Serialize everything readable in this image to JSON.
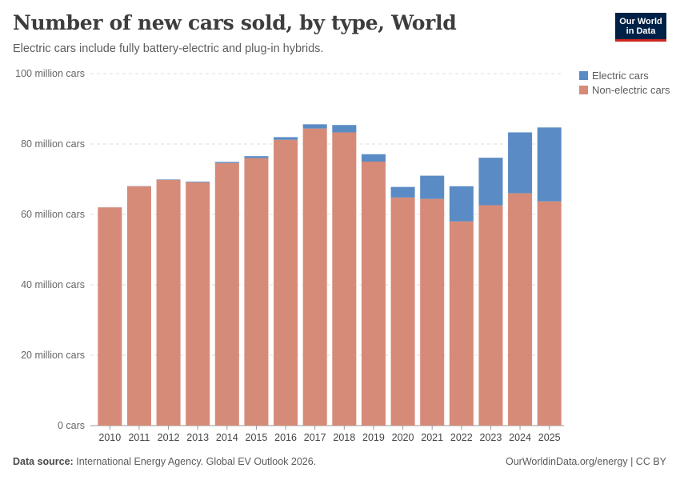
{
  "header": {
    "title": "Number of new cars sold, by type, World",
    "subtitle": "Electric cars include fully battery-electric and plug-in hybrids.",
    "logo_line1": "Our World",
    "logo_line2": "in Data"
  },
  "footer": {
    "source_label": "Data source:",
    "source_text": "International Energy Agency. Global EV Outlook 2026.",
    "right_text": "OurWorldinData.org/energy | CC BY"
  },
  "colors": {
    "electric": "#5b8bc4",
    "non_electric": "#d68b78",
    "grid": "#dddddd"
  },
  "chart_data": {
    "type": "bar",
    "stacked": true,
    "title": "Number of new cars sold, by type, World",
    "subtitle": "Electric cars include fully battery-electric and plug-in hybrids.",
    "categories": [
      "2010",
      "2011",
      "2012",
      "2013",
      "2014",
      "2015",
      "2016",
      "2017",
      "2018",
      "2019",
      "2020",
      "2021",
      "2022",
      "2023",
      "2024",
      "2025"
    ],
    "series": [
      {
        "name": "Non-electric cars",
        "values": [
          62.0,
          68.0,
          69.8,
          69.1,
          74.6,
          76.0,
          81.2,
          84.4,
          83.3,
          75.0,
          64.8,
          64.4,
          58.0,
          62.6,
          66.0,
          63.7
        ]
      },
      {
        "name": "Electric cars",
        "values": [
          0.01,
          0.05,
          0.13,
          0.2,
          0.32,
          0.55,
          0.75,
          1.2,
          2.1,
          2.1,
          3.0,
          6.6,
          10.0,
          13.5,
          17.3,
          21.0
        ]
      }
    ],
    "y_ticks": [
      {
        "value": 0,
        "label": "0 cars"
      },
      {
        "value": 20,
        "label": "20 million cars"
      },
      {
        "value": 40,
        "label": "40 million cars"
      },
      {
        "value": 60,
        "label": "60 million cars"
      },
      {
        "value": 80,
        "label": "80 million cars"
      },
      {
        "value": 100,
        "label": "100 million cars"
      }
    ],
    "ylim": [
      0,
      100
    ],
    "grid": true,
    "legend_position": "top-right"
  }
}
